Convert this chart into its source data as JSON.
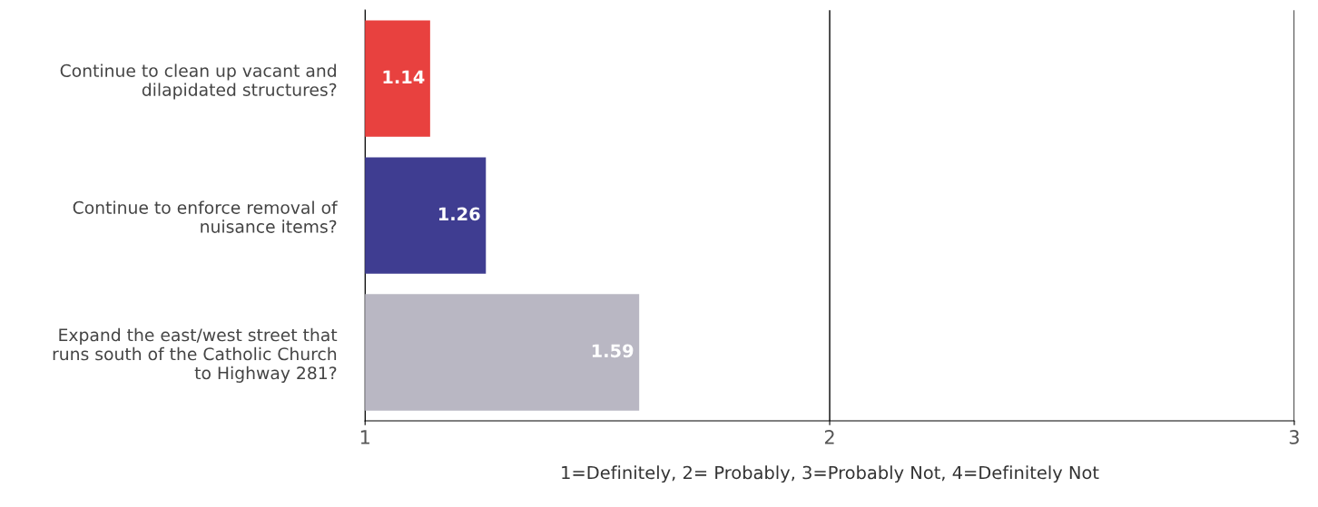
{
  "chart_data": {
    "type": "bar",
    "orientation": "horizontal",
    "xlabel": "1=Definitely, 2= Probably, 3=Probably Not, 4=Definitely Not",
    "categories": [
      "Continue to clean up vacant and\ndilapidated structures?",
      "Continue to enforce removal of\nnuisance items?",
      "Expand the east/west street that\nruns south of the Catholic Church\nto Highway 281?"
    ],
    "values": [
      1.14,
      1.26,
      1.59
    ],
    "colors": [
      "#e8413f",
      "#3f3d91",
      "#b9b7c3"
    ],
    "xlim": [
      1,
      3
    ],
    "xticks": [
      1,
      2,
      3
    ],
    "grid": "x",
    "data_labels": true
  }
}
